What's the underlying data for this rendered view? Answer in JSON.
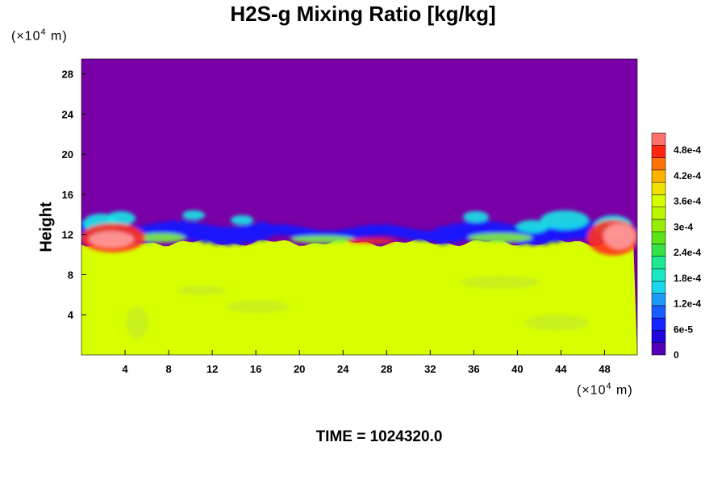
{
  "chart_data": {
    "type": "heatmap",
    "title": "H2S-g Mixing Ratio [kg/kg]",
    "ylabel": "Height",
    "y_unit": {
      "prefix": "(×10",
      "exponent": "4",
      "suffix": " m)"
    },
    "x_unit": {
      "prefix": "(×10",
      "exponent": "4",
      "suffix": " m)"
    },
    "xlim": [
      0,
      51
    ],
    "ylim": [
      0,
      29.5
    ],
    "x_ticks": [
      4,
      8,
      12,
      16,
      20,
      24,
      28,
      32,
      36,
      40,
      44,
      48
    ],
    "y_ticks": [
      4,
      8,
      12,
      16,
      20,
      24,
      28
    ],
    "colorbar": {
      "range": [
        0,
        0.00052
      ],
      "tick_values": [
        0,
        6e-05,
        0.00012,
        0.00018,
        0.00024,
        0.0003,
        0.00036,
        0.00042,
        0.00048
      ],
      "tick_labels": [
        "0",
        "6e-5",
        "1.2e-4",
        "1.8e-4",
        "2.4e-4",
        "3e-4",
        "3.6e-4",
        "4.2e-4",
        "4.8e-4"
      ],
      "levels": 18
    },
    "fields": {
      "lower_layer_value": 0.00036,
      "upper_layer_value": 0,
      "interface_height": 12
    },
    "time_label": "TIME = 1024320.0"
  },
  "colors": {
    "upper": "#7800a6",
    "lower": "#d8ff00",
    "blue": "#1a1aff",
    "cyan": "#1ae6e6",
    "red": "#ff3020",
    "pink": "#ff9c9c"
  }
}
